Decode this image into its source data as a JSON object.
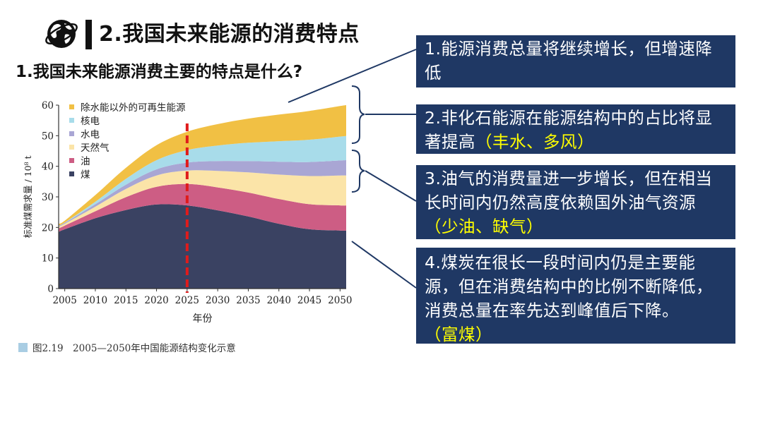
{
  "slide": {
    "title": "2.我国未来能源的消费特点",
    "question": "1.我国未来能源消费主要的特点是什么?"
  },
  "callouts": [
    {
      "text": "1.能源消费总量将继续增长，但增速降低",
      "highlight": ""
    },
    {
      "text": "2.非化石能源在能源结构中的占比将显著提高",
      "highlight": "（丰水、多风）"
    },
    {
      "text": "3.油气的消费量进一步增长，但在相当长时间内仍然高度依赖国外油气资源",
      "highlight": "（少油、缺气）"
    },
    {
      "text": "4.煤炭在很长一段时间内仍是主要能源，但在消费结构中的比例不断降低，消费总量在率先达到峰值后下降。",
      "highlight": "（富煤）"
    }
  ],
  "caption": "图2.19　2005—2050年中国能源结构变化示意",
  "colors": {
    "callout_bg": "#1f3864",
    "highlight": "#ffff00",
    "coal": "#3a4262",
    "oil": "#cd5d84",
    "gas": "#fbe4a8",
    "hydro": "#a9a6d4",
    "nuclear": "#a8dcea",
    "renewable": "#f1c044",
    "marker": "#e01b1b"
  },
  "icons": {
    "logo": "globe-icon"
  },
  "chart_data": {
    "type": "area",
    "stacked": true,
    "xlabel": "年份",
    "ylabel": "标准煤需求量 / 10⁸ t",
    "xlim": [
      2004,
      2051
    ],
    "ylim": [
      0,
      60
    ],
    "x_ticks": [
      2005,
      2010,
      2015,
      2020,
      2025,
      2030,
      2035,
      2040,
      2045,
      2050
    ],
    "y_ticks": [
      0,
      10,
      20,
      30,
      40,
      50,
      60
    ],
    "x": [
      2004,
      2005,
      2010,
      2015,
      2020,
      2025,
      2030,
      2035,
      2040,
      2045,
      2050,
      2051
    ],
    "series": [
      {
        "name": "煤",
        "color": "#3a4262",
        "values": [
          18.5,
          19.4,
          23.0,
          25.7,
          27.5,
          27.2,
          25.6,
          23.6,
          21.2,
          19.4,
          19.0,
          19.0
        ]
      },
      {
        "name": "油",
        "color": "#cd5d84",
        "values": [
          1.2,
          1.2,
          2.3,
          4.2,
          5.8,
          7.0,
          7.5,
          7.8,
          8.1,
          8.2,
          8.2,
          8.2
        ]
      },
      {
        "name": "天然气",
        "color": "#fbe4a8",
        "values": [
          0.6,
          0.6,
          1.5,
          2.7,
          3.7,
          4.4,
          5.4,
          6.6,
          8.0,
          9.2,
          9.8,
          9.8
        ]
      },
      {
        "name": "水电",
        "color": "#a9a6d4",
        "values": [
          0.3,
          0.3,
          0.8,
          1.4,
          2.0,
          2.6,
          3.2,
          3.7,
          4.2,
          4.6,
          4.9,
          5.0
        ]
      },
      {
        "name": "核电",
        "color": "#a8dcea",
        "values": [
          0.1,
          0.1,
          0.8,
          1.9,
          3.0,
          4.1,
          5.1,
          6.0,
          6.7,
          7.3,
          7.8,
          7.9
        ]
      },
      {
        "name": "除水能以外的可再生能源",
        "color": "#f1c044",
        "values": [
          0.6,
          0.6,
          2.2,
          3.6,
          4.9,
          6.0,
          7.0,
          7.9,
          8.7,
          9.4,
          10.0,
          10.1
        ]
      }
    ],
    "legend_order": [
      "除水能以外的可再生能源",
      "核电",
      "水电",
      "天然气",
      "油",
      "煤"
    ],
    "legend_placement": "top-left",
    "marker_line": {
      "x": 2025,
      "style": "dashed",
      "color": "#e01b1b"
    }
  }
}
